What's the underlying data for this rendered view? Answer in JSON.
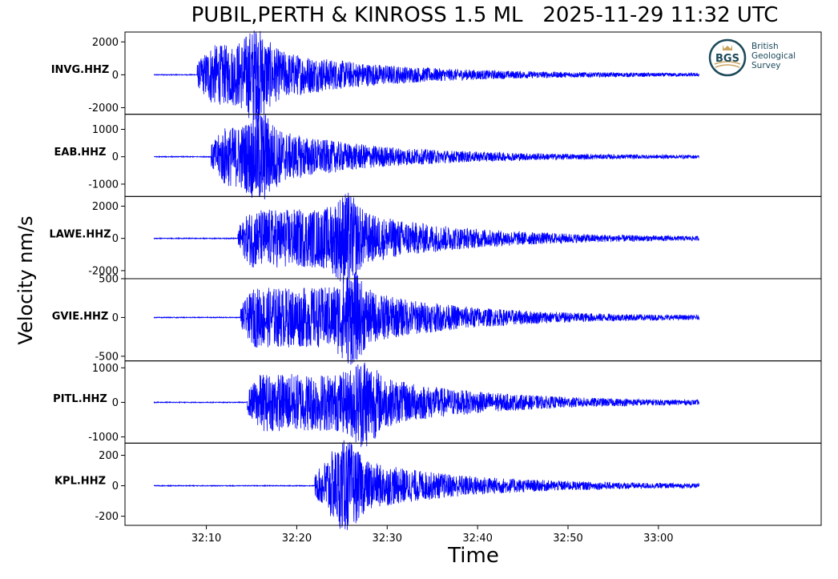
{
  "chart_data": {
    "type": "line",
    "title": "PUBIL,PERTH & KINROSS 1.5 ML   2025-11-29 11:32 UTC",
    "xlabel": "Time",
    "ylabel": "Velocity nm/s",
    "x_ticks": [
      "32:10",
      "32:20",
      "32:30",
      "32:40",
      "32:50",
      "33:00"
    ],
    "x_tick_seconds": [
      10,
      20,
      30,
      40,
      50,
      60
    ],
    "xlim_seconds": [
      1,
      78
    ],
    "trace_start_seconds": 4.2,
    "trace_end_seconds": 64.5,
    "line_color": "#0000ff",
    "panels": [
      {
        "station": "INVG.HHZ",
        "ylim": [
          -2400,
          2600
        ],
        "yticks": [
          2000,
          0,
          -2000
        ],
        "yticklabels": [
          "2000",
          "0",
          "-2000"
        ],
        "onset_seconds": 9.0,
        "peak": 2500,
        "trough": -2100,
        "peak_seconds": 15.5
      },
      {
        "station": "EAB.HHZ",
        "ylim": [
          -1450,
          1550
        ],
        "yticks": [
          1000,
          0,
          -1000
        ],
        "yticklabels": [
          "1000",
          "0",
          "-1000"
        ],
        "onset_seconds": 10.5,
        "peak": 1500,
        "trough": -1300,
        "peak_seconds": 16.0
      },
      {
        "station": "LAWE.HHZ",
        "ylim": [
          -2500,
          2600
        ],
        "yticks": [
          2000,
          0,
          -2000
        ],
        "yticklabels": [
          "2000",
          "0",
          "-2000"
        ],
        "onset_seconds": 13.5,
        "peak": 2500,
        "trough": -2400,
        "peak_seconds": 25.5
      },
      {
        "station": "GVIE.HHZ",
        "ylim": [
          -560,
          500
        ],
        "yticks": [
          500,
          0,
          -500
        ],
        "yticklabels": [
          "500",
          "0",
          "-500"
        ],
        "onset_seconds": 13.8,
        "peak": 470,
        "trough": -530,
        "peak_seconds": 26.0
      },
      {
        "station": "PITL.HHZ",
        "ylim": [
          -1180,
          1200
        ],
        "yticks": [
          1000,
          0,
          -1000
        ],
        "yticklabels": [
          "1000",
          "0",
          "-1000"
        ],
        "onset_seconds": 14.5,
        "peak": 1150,
        "trough": -1100,
        "peak_seconds": 27.5
      },
      {
        "station": "KPL.HHZ",
        "ylim": [
          -260,
          280
        ],
        "yticks": [
          200,
          0,
          -200
        ],
        "yticklabels": [
          "200",
          "0",
          "-200"
        ],
        "onset_seconds": 22.0,
        "peak": 260,
        "trough": -240,
        "peak_seconds": 25.5
      }
    ]
  },
  "logo": {
    "mark": "BGS",
    "lines": [
      "British",
      "Geological",
      "Survey"
    ],
    "icon": "bgs-crown-logo",
    "colors": {
      "ring": "#1d4a5a",
      "text": "#1d4a5a",
      "accent": "#c9a25c"
    }
  }
}
